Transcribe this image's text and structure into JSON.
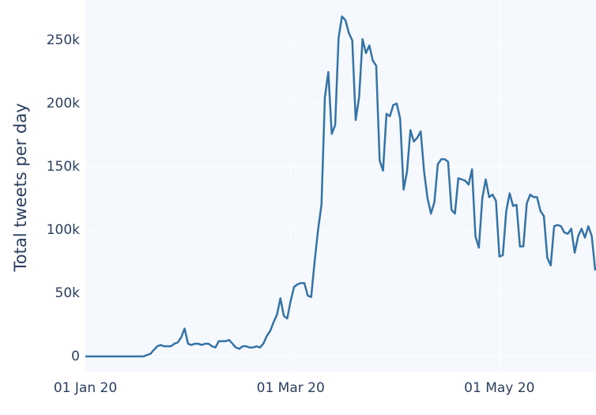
{
  "chart_data": {
    "type": "line",
    "ylabel": "Total tweets per day",
    "x": [
      "2020-01-01",
      "2020-01-02",
      "2020-01-03",
      "2020-01-04",
      "2020-01-05",
      "2020-01-06",
      "2020-01-07",
      "2020-01-08",
      "2020-01-09",
      "2020-01-10",
      "2020-01-11",
      "2020-01-12",
      "2020-01-13",
      "2020-01-14",
      "2020-01-15",
      "2020-01-16",
      "2020-01-17",
      "2020-01-18",
      "2020-01-19",
      "2020-01-20",
      "2020-01-21",
      "2020-01-22",
      "2020-01-23",
      "2020-01-24",
      "2020-01-25",
      "2020-01-26",
      "2020-01-27",
      "2020-01-28",
      "2020-01-29",
      "2020-01-30",
      "2020-01-31",
      "2020-02-01",
      "2020-02-02",
      "2020-02-03",
      "2020-02-04",
      "2020-02-05",
      "2020-02-06",
      "2020-02-07",
      "2020-02-08",
      "2020-02-09",
      "2020-02-10",
      "2020-02-11",
      "2020-02-12",
      "2020-02-13",
      "2020-02-14",
      "2020-02-15",
      "2020-02-16",
      "2020-02-17",
      "2020-02-18",
      "2020-02-19",
      "2020-02-20",
      "2020-02-21",
      "2020-02-22",
      "2020-02-23",
      "2020-02-24",
      "2020-02-25",
      "2020-02-26",
      "2020-02-27",
      "2020-02-28",
      "2020-02-29",
      "2020-03-01",
      "2020-03-02",
      "2020-03-03",
      "2020-03-04",
      "2020-03-05",
      "2020-03-06",
      "2020-03-07",
      "2020-03-08",
      "2020-03-09",
      "2020-03-10",
      "2020-03-11",
      "2020-03-12",
      "2020-03-13",
      "2020-03-14",
      "2020-03-15",
      "2020-03-16",
      "2020-03-17",
      "2020-03-18",
      "2020-03-19",
      "2020-03-20",
      "2020-03-21",
      "2020-03-22",
      "2020-03-23",
      "2020-03-24",
      "2020-03-25",
      "2020-03-26",
      "2020-03-27",
      "2020-03-28",
      "2020-03-29",
      "2020-03-30",
      "2020-03-31",
      "2020-04-01",
      "2020-04-02",
      "2020-04-03",
      "2020-04-04",
      "2020-04-05",
      "2020-04-06",
      "2020-04-07",
      "2020-04-08",
      "2020-04-09",
      "2020-04-10",
      "2020-04-11",
      "2020-04-12",
      "2020-04-13",
      "2020-04-14",
      "2020-04-15",
      "2020-04-16",
      "2020-04-17",
      "2020-04-18",
      "2020-04-19",
      "2020-04-20",
      "2020-04-21",
      "2020-04-22",
      "2020-04-23",
      "2020-04-24",
      "2020-04-25",
      "2020-04-26",
      "2020-04-27",
      "2020-04-28",
      "2020-04-29",
      "2020-04-30",
      "2020-05-01",
      "2020-05-02",
      "2020-05-03",
      "2020-05-04",
      "2020-05-05",
      "2020-05-06",
      "2020-05-07",
      "2020-05-08",
      "2020-05-09",
      "2020-05-10",
      "2020-05-11",
      "2020-05-12",
      "2020-05-13",
      "2020-05-14",
      "2020-05-15",
      "2020-05-16",
      "2020-05-17",
      "2020-05-18",
      "2020-05-19",
      "2020-05-20",
      "2020-05-21",
      "2020-05-22",
      "2020-05-23",
      "2020-05-24",
      "2020-05-25",
      "2020-05-26",
      "2020-05-27",
      "2020-05-28",
      "2020-05-29"
    ],
    "series": [
      {
        "name": "tweets",
        "color": "#3572a5",
        "values": [
          0,
          0,
          0,
          0,
          0,
          0,
          0,
          0,
          0,
          0,
          0,
          0,
          0,
          0,
          0,
          0,
          0,
          0,
          1000,
          2000,
          5000,
          8000,
          9000,
          8000,
          8000,
          8000,
          10000,
          11000,
          15000,
          22000,
          10000,
          9000,
          10000,
          10000,
          9000,
          10000,
          10000,
          8000,
          7000,
          12000,
          12000,
          12000,
          13000,
          10000,
          7000,
          6000,
          8000,
          8000,
          7000,
          7000,
          8000,
          7000,
          10000,
          16000,
          20000,
          27000,
          33000,
          46000,
          32000,
          30000,
          44000,
          55000,
          57000,
          58000,
          58000,
          48000,
          47000,
          75000,
          100000,
          120000,
          205000,
          225000,
          176000,
          183000,
          252000,
          269000,
          266000,
          256000,
          250000,
          187000,
          205000,
          251000,
          240000,
          246000,
          234000,
          230000,
          155000,
          147000,
          192000,
          190000,
          199000,
          200000,
          188000,
          132000,
          146000,
          179000,
          170000,
          173000,
          178000,
          146000,
          125000,
          113000,
          122000,
          152000,
          156000,
          156000,
          154000,
          116000,
          113000,
          141000,
          140000,
          139000,
          136000,
          148000,
          95000,
          86000,
          125000,
          140000,
          126000,
          128000,
          123000,
          79000,
          80000,
          115000,
          129000,
          119000,
          120000,
          87000,
          87000,
          121000,
          128000,
          126000,
          126000,
          115000,
          111000,
          78000,
          72000,
          103000,
          104000,
          103000,
          98000,
          97000,
          101000,
          82000,
          95000,
          101000,
          94000,
          103000,
          95000,
          68000
        ]
      }
    ],
    "xlim": [
      "2020-01-01",
      "2020-05-29"
    ],
    "xticks": [
      {
        "value": "2020-01-01",
        "label": "01 Jan 20"
      },
      {
        "value": "2020-03-01",
        "label": "01 Mar 20"
      },
      {
        "value": "2020-05-01",
        "label": "01 May 20"
      }
    ],
    "ylim": [
      -12000,
      282000
    ],
    "yticks": [
      0,
      {
        "value": 50000,
        "label": "50k"
      },
      {
        "value": 100000,
        "label": "100k"
      },
      {
        "value": 150000,
        "label": "150k"
      },
      {
        "value": 200000,
        "label": "200k"
      },
      {
        "value": 250000,
        "label": "250k"
      }
    ],
    "grid": true,
    "background": "#f5f9fe",
    "grid_color": "#ffffff"
  }
}
